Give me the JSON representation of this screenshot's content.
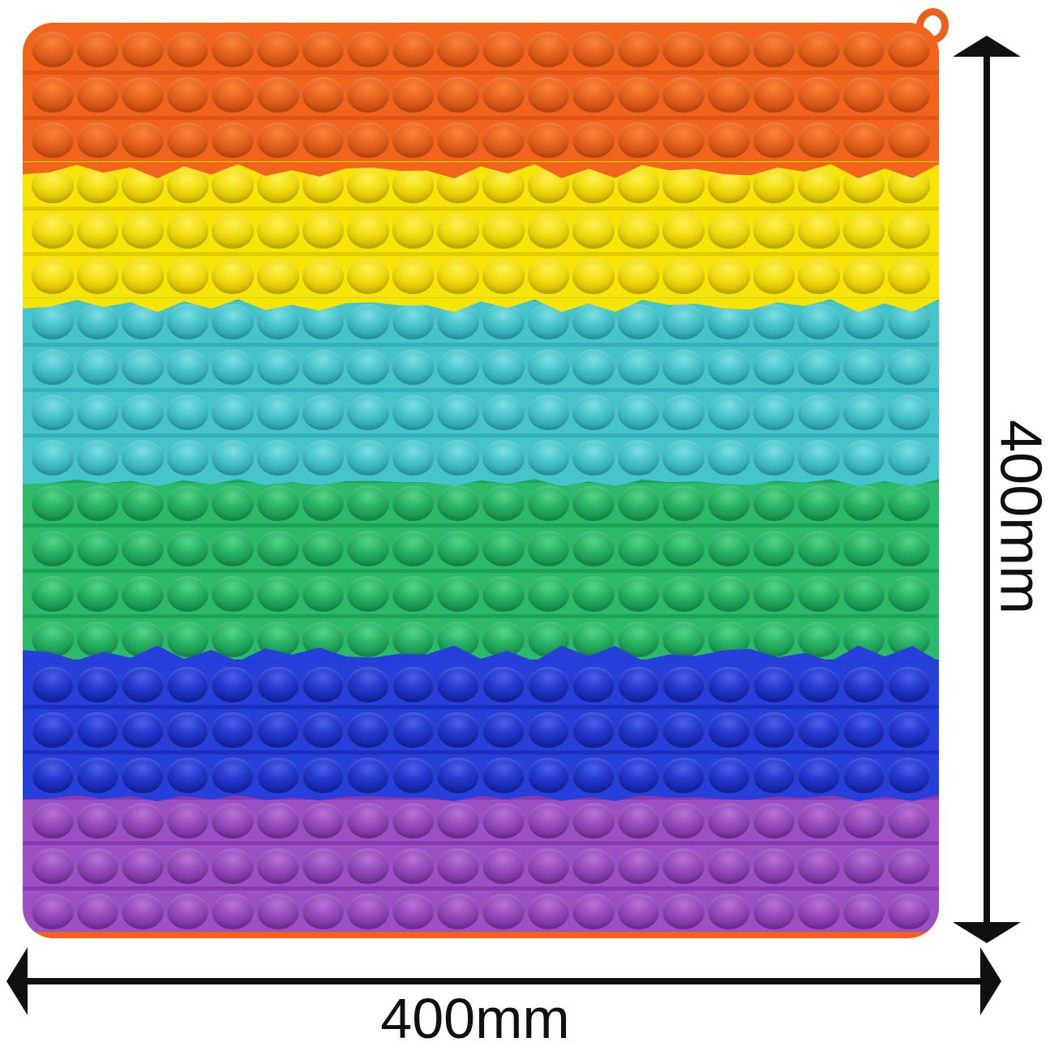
{
  "image_type": "product photograph",
  "subject": "Jumbo square rainbow pop-it bubble fidget toy with size annotation arrows",
  "dimensions": {
    "height_label": "400mm",
    "width_label": "400mm"
  },
  "annotations": {
    "ink": "#101010"
  },
  "toy": {
    "rows": 20,
    "cols": 20,
    "loop_color": "#ED5F1D",
    "bands": [
      {
        "name": "orange",
        "rows": 3,
        "colors": {
          "base": "#F2641C",
          "rail": "#DE5517",
          "bubble": "#E6631F",
          "highlight": "#FA8336",
          "shadow": "#C74D11"
        }
      },
      {
        "name": "yellow",
        "rows": 3,
        "colors": {
          "base": "#F8E506",
          "rail": "#E3CB04",
          "bubble": "#F3DD10",
          "highlight": "#FDF155",
          "shadow": "#CFB400"
        }
      },
      {
        "name": "cyan",
        "rows": 4,
        "colors": {
          "base": "#45C4CC",
          "rail": "#36B0BA",
          "bubble": "#48C3CB",
          "highlight": "#7CDEE3",
          "shadow": "#2B9FAA"
        }
      },
      {
        "name": "green",
        "rows": 4,
        "colors": {
          "base": "#2ABA69",
          "rail": "#1FA35A",
          "bubble": "#28B164",
          "highlight": "#55D48A",
          "shadow": "#17904D"
        }
      },
      {
        "name": "blue",
        "rows": 3,
        "colors": {
          "base": "#2840DB",
          "rail": "#1C30BD",
          "bubble": "#2338CE",
          "highlight": "#4A60E8",
          "shadow": "#1423A0"
        }
      },
      {
        "name": "purple",
        "rows": 3,
        "colors": {
          "base": "#9C50C3",
          "rail": "#8839AF",
          "bubble": "#964CBB",
          "highlight": "#B872D7",
          "shadow": "#752F9B"
        }
      }
    ]
  }
}
